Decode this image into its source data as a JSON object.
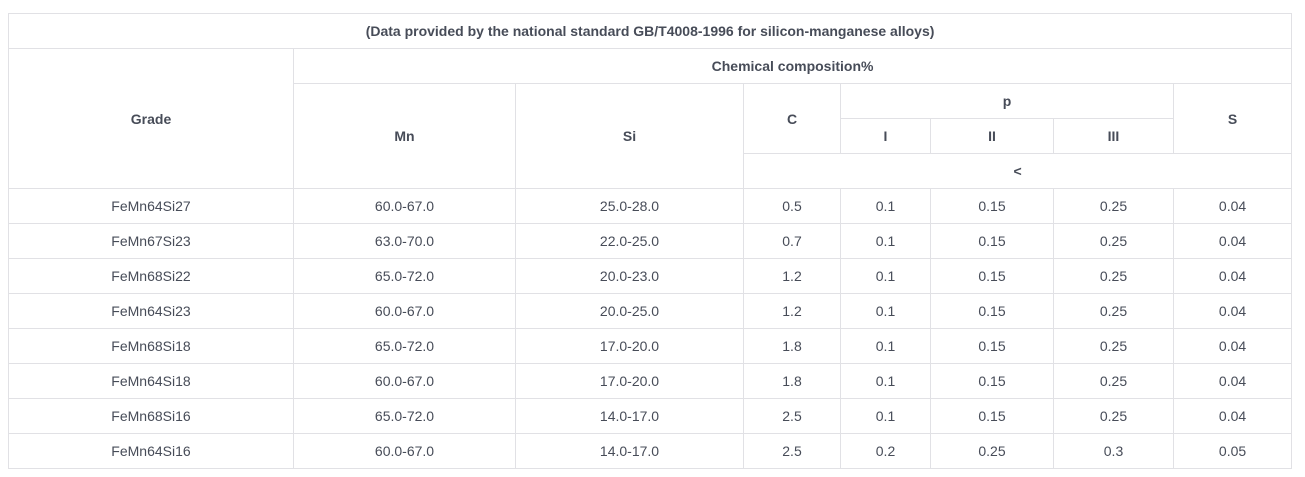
{
  "table": {
    "title": "(Data provided by the national standard GB/T4008-1996 for silicon-manganese alloys)",
    "header": {
      "grade": "Grade",
      "chemical_composition": "Chemical composition%",
      "mn": "Mn",
      "si": "Si",
      "c": "C",
      "p": "p",
      "p_grades": [
        "I",
        "II",
        "III"
      ],
      "s": "S",
      "limit_symbol": "<"
    },
    "row_keys": [
      "grade",
      "mn",
      "si",
      "c",
      "p1",
      "p2",
      "p3",
      "s"
    ],
    "rows": [
      [
        "FeMn64Si27",
        "60.0-67.0",
        "25.0-28.0",
        "0.5",
        "0.1",
        "0.15",
        "0.25",
        "0.04"
      ],
      [
        "FeMn67Si23",
        "63.0-70.0",
        "22.0-25.0",
        "0.7",
        "0.1",
        "0.15",
        "0.25",
        "0.04"
      ],
      [
        "FeMn68Si22",
        "65.0-72.0",
        "20.0-23.0",
        "1.2",
        "0.1",
        "0.15",
        "0.25",
        "0.04"
      ],
      [
        "FeMn64Si23",
        "60.0-67.0",
        "20.0-25.0",
        "1.2",
        "0.1",
        "0.15",
        "0.25",
        "0.04"
      ],
      [
        "FeMn68Si18",
        "65.0-72.0",
        "17.0-20.0",
        "1.8",
        "0.1",
        "0.15",
        "0.25",
        "0.04"
      ],
      [
        "FeMn64Si18",
        "60.0-67.0",
        "17.0-20.0",
        "1.8",
        "0.1",
        "0.15",
        "0.25",
        "0.04"
      ],
      [
        "FeMn68Si16",
        "65.0-72.0",
        "14.0-17.0",
        "2.5",
        "0.1",
        "0.15",
        "0.25",
        "0.04"
      ],
      [
        "FeMn64Si16",
        "60.0-67.0",
        "14.0-17.0",
        "2.5",
        "0.2",
        "0.25",
        "0.3",
        "0.05"
      ]
    ],
    "colors": {
      "header_text": "#2d3144",
      "body_text": "#474c58",
      "border": "#e1e1e5",
      "background": "#ffffff"
    }
  }
}
